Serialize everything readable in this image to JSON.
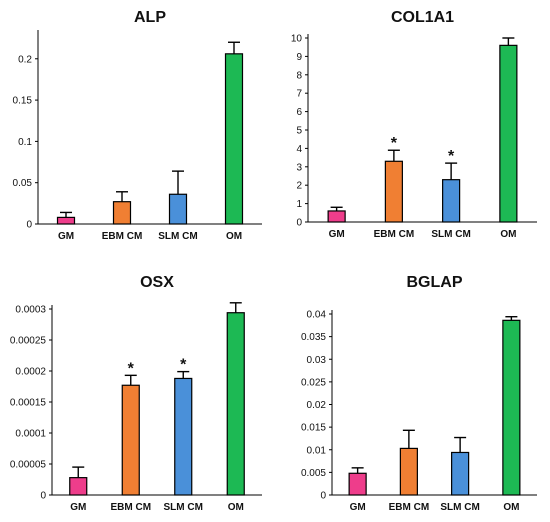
{
  "chart_data": [
    {
      "type": "bar",
      "title": "ALP",
      "categories": [
        "GM",
        "EBM CM",
        "SLM CM",
        "OM"
      ],
      "values": [
        0.008,
        0.027,
        0.036,
        0.206
      ],
      "errors": [
        0.006,
        0.012,
        0.028,
        0.014
      ],
      "significant": [
        false,
        false,
        false,
        false
      ],
      "significance_label": "*",
      "yticks": [
        0,
        0.05,
        0.1,
        0.15,
        0.2
      ],
      "ytick_labels": [
        "0",
        "0.05",
        "0.1",
        "0.15",
        "0.2"
      ],
      "ylim": [
        0,
        0.23
      ],
      "colors": [
        "#ee3d8b",
        "#f07f33",
        "#4a90d9",
        "#1db954"
      ]
    },
    {
      "type": "bar",
      "title": "COL1A1",
      "categories": [
        "GM",
        "EBM CM",
        "SLM CM",
        "OM"
      ],
      "values": [
        0.6,
        3.3,
        2.3,
        9.6
      ],
      "errors": [
        0.2,
        0.6,
        0.9,
        0.4
      ],
      "significant": [
        false,
        true,
        true,
        false
      ],
      "significance_label": "*",
      "yticks": [
        0,
        1,
        2,
        3,
        4,
        5,
        6,
        7,
        8,
        9,
        10
      ],
      "ytick_labels": [
        "0",
        "1",
        "2",
        "3",
        "4",
        "5",
        "6",
        "7",
        "8",
        "9",
        "10"
      ],
      "ylim": [
        0,
        10
      ],
      "colors": [
        "#ee3d8b",
        "#f07f33",
        "#4a90d9",
        "#1db954"
      ]
    },
    {
      "type": "bar",
      "title": "OSX",
      "categories": [
        "GM",
        "EBM CM",
        "SLM CM",
        "OM"
      ],
      "values": [
        2.8e-05,
        0.000177,
        0.000188,
        0.000294
      ],
      "errors": [
        1.7e-05,
        1.6e-05,
        1.1e-05,
        1.6e-05
      ],
      "significant": [
        false,
        true,
        true,
        false
      ],
      "significance_label": "*",
      "yticks": [
        0,
        5e-05,
        0.0001,
        0.00015,
        0.0002,
        0.00025,
        0.0003
      ],
      "ytick_labels": [
        "0",
        "0.00005",
        "0.0001",
        "0.00015",
        "0.0002",
        "0.00025",
        "0.0003"
      ],
      "ylim": [
        0,
        0.0003
      ],
      "colors": [
        "#ee3d8b",
        "#f07f33",
        "#4a90d9",
        "#1db954"
      ]
    },
    {
      "type": "bar",
      "title": "BGLAP",
      "categories": [
        "GM",
        "EBM CM",
        "SLM CM",
        "OM"
      ],
      "values": [
        0.0048,
        0.0103,
        0.0094,
        0.0386
      ],
      "errors": [
        0.0012,
        0.004,
        0.0033,
        0.0008
      ],
      "significant": [
        false,
        false,
        false,
        false
      ],
      "significance_label": "*",
      "yticks": [
        0,
        0.005,
        0.01,
        0.015,
        0.02,
        0.025,
        0.03,
        0.035,
        0.04
      ],
      "ytick_labels": [
        "0",
        "0.005",
        "0.01",
        "0.015",
        "0.02",
        "0.025",
        "0.03",
        "0.035",
        "0.04"
      ],
      "ylim": [
        0,
        0.04
      ],
      "colors": [
        "#ee3d8b",
        "#f07f33",
        "#4a90d9",
        "#1db954"
      ]
    }
  ]
}
